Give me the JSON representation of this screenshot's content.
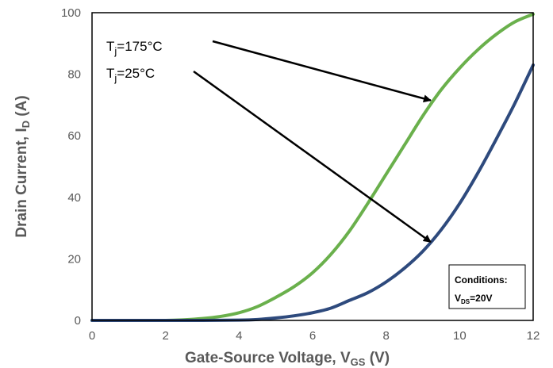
{
  "chart_data": {
    "type": "line",
    "xlabel": "Gate-Source Voltage, V",
    "xlabel_sub": "GS",
    "xlabel_suffix": " (V)",
    "ylabel": "Drain Current, I",
    "ylabel_sub": "D",
    "ylabel_suffix": " (A)",
    "xlim": [
      0,
      12
    ],
    "ylim": [
      0,
      100
    ],
    "xticks": [
      0,
      2,
      4,
      6,
      8,
      10,
      12
    ],
    "yticks": [
      0,
      20,
      40,
      60,
      80,
      100
    ],
    "grid": false,
    "series": [
      {
        "name": "Tj = 175°C",
        "color": "#6ab04c",
        "x": [
          0,
          1,
          2,
          2.5,
          3,
          3.5,
          4,
          4.5,
          5,
          5.5,
          6,
          6.5,
          7,
          7.5,
          8,
          8.5,
          9,
          9.5,
          10,
          10.5,
          11,
          11.5,
          12
        ],
        "y": [
          0,
          0,
          0,
          0.2,
          0.6,
          1.3,
          2.5,
          4.5,
          7.5,
          11,
          15.5,
          21.5,
          29,
          38,
          47.5,
          57,
          66.5,
          75,
          82,
          88,
          93,
          97,
          99.5
        ]
      },
      {
        "name": "Tj = 25°C",
        "color": "#2e4a7d",
        "x": [
          0,
          2,
          3,
          4,
          4.5,
          5,
          5.5,
          6,
          6.5,
          7,
          7.5,
          8,
          8.5,
          9,
          9.5,
          10,
          10.5,
          11,
          11.5,
          12
        ],
        "y": [
          0,
          0,
          0,
          0.1,
          0.3,
          0.8,
          1.5,
          2.5,
          4,
          6.5,
          9,
          12.5,
          17,
          22.5,
          29.5,
          38,
          48,
          59,
          70.5,
          83
        ]
      }
    ],
    "annotations": [
      {
        "T": "T",
        "sub": "j",
        "rest": "=175°C",
        "target_series": 0,
        "target": [
          9.3,
          72
        ]
      },
      {
        "T": "T",
        "sub": "j",
        "rest": "=25°C",
        "target_series": 1,
        "target": [
          9.3,
          26
        ]
      }
    ],
    "conditions": {
      "heading": "Conditions:",
      "line_main": "V",
      "line_sub": "DS",
      "line_rest": "=20V"
    }
  }
}
